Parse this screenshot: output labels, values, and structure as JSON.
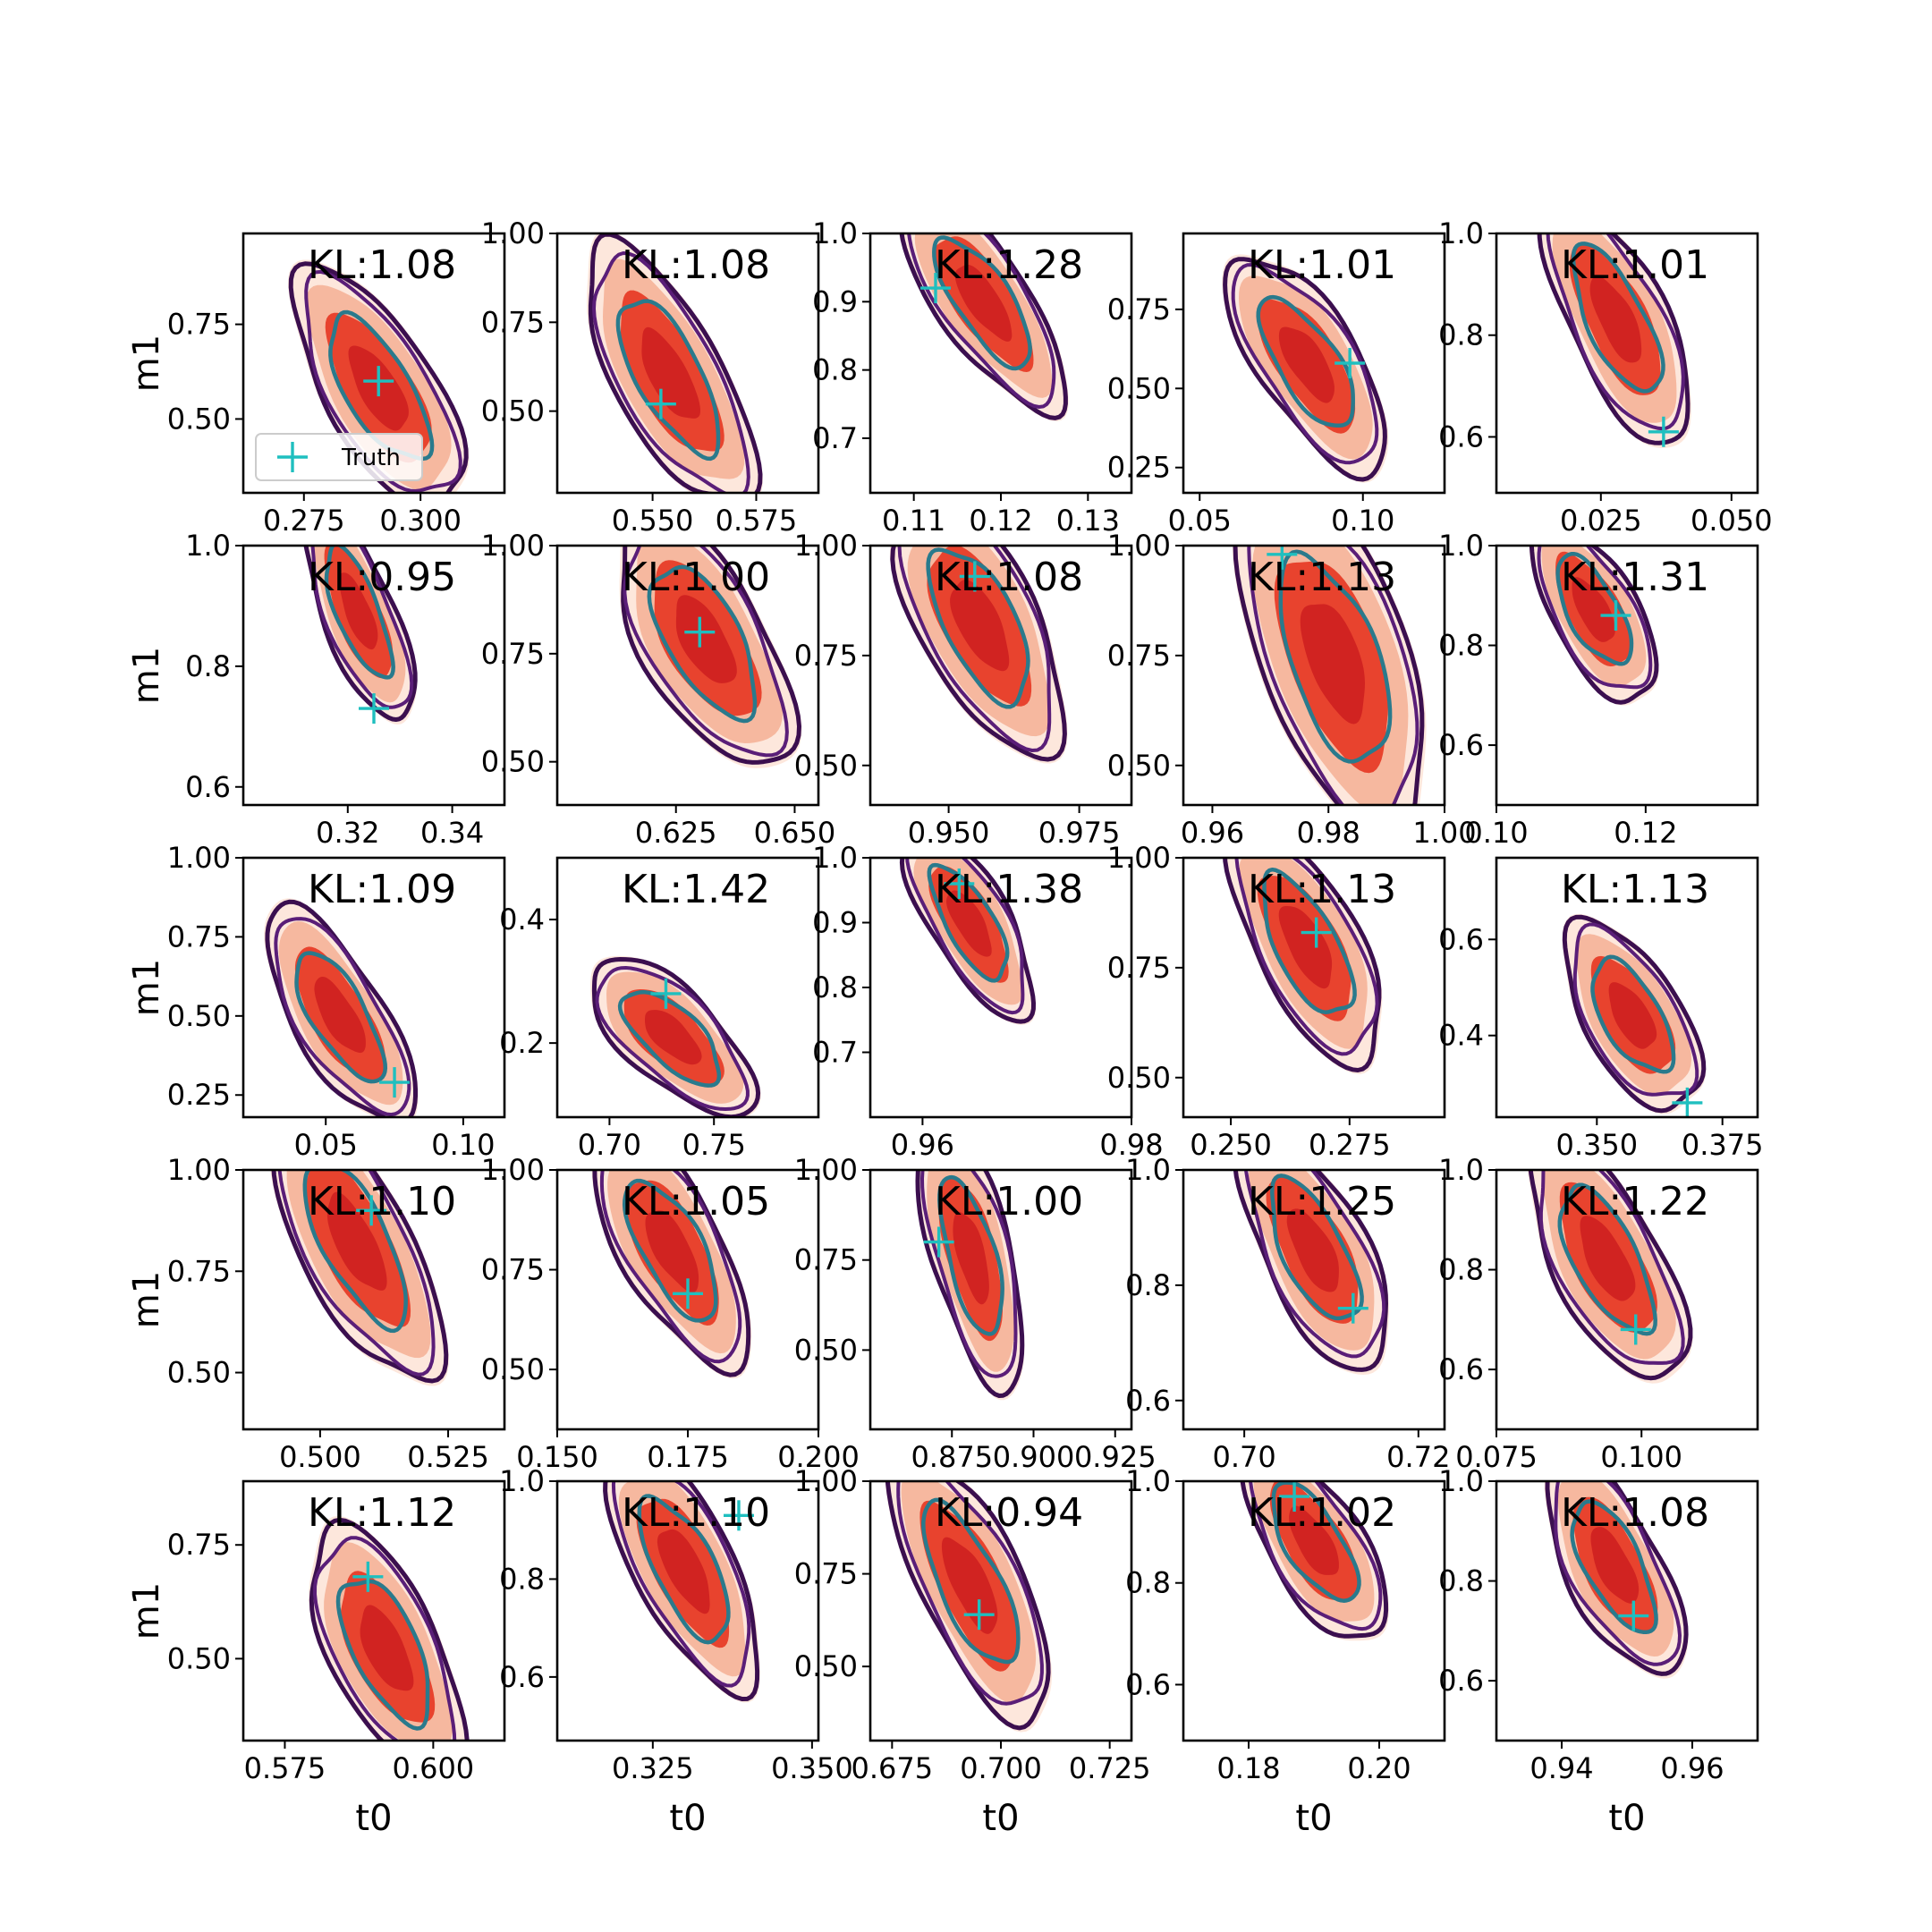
{
  "figure": {
    "background": "#ffffff"
  },
  "style": {
    "fill_colors": [
      "#fde3d6",
      "#f6b59b",
      "#e8432e",
      "#c9181e"
    ],
    "outer_contour_color": "#3b0f4f",
    "mid_contour_color": "#5a1e78",
    "inner_contour_color": "#2a7a8c",
    "truth_marker_color": "#1fbfbf"
  },
  "legend": {
    "label": "Truth",
    "panel": 0
  },
  "chart_data": [
    {
      "type": "contour",
      "row": 0,
      "col": 0,
      "kl": "KL:1.08",
      "xlim": [
        0.262,
        0.318
      ],
      "ylim": [
        0.305,
        0.99
      ],
      "xticks": [
        0.275,
        0.3
      ],
      "xtick_labels": [
        "0.275",
        "0.300"
      ],
      "yticks": [
        0.5,
        0.75
      ],
      "ytick_labels": [
        "0.50",
        "0.75"
      ],
      "center": [
        0.291,
        0.58
      ],
      "spread": [
        0.0074,
        0.13
      ],
      "rho": -0.68,
      "truth": [
        0.291,
        0.6
      ],
      "xlabel": "",
      "ylabel": "m1"
    },
    {
      "type": "contour",
      "row": 0,
      "col": 1,
      "kl": "KL:1.08",
      "xlim": [
        0.527,
        0.59
      ],
      "ylim": [
        0.27,
        1.0
      ],
      "xticks": [
        0.55,
        0.575
      ],
      "xtick_labels": [
        "0.550",
        "0.575"
      ],
      "yticks": [
        0.5,
        0.75,
        1.0
      ],
      "ytick_labels": [
        "0.50",
        "0.75",
        "1.00"
      ],
      "center": [
        0.554,
        0.6
      ],
      "spread": [
        0.0083,
        0.15
      ],
      "rho": -0.7,
      "truth": [
        0.552,
        0.52
      ],
      "xlabel": "",
      "ylabel": ""
    },
    {
      "type": "contour",
      "row": 0,
      "col": 2,
      "kl": "KL:1.28",
      "xlim": [
        0.105,
        0.135
      ],
      "ylim": [
        0.62,
        1.0
      ],
      "xticks": [
        0.11,
        0.12,
        0.13
      ],
      "xtick_labels": [
        "0.11",
        "0.12",
        "0.13"
      ],
      "yticks": [
        0.7,
        0.8,
        0.9,
        1.0
      ],
      "ytick_labels": [
        "0.7",
        "0.8",
        "0.9",
        "1.0"
      ],
      "center": [
        0.118,
        0.9
      ],
      "spread": [
        0.0038,
        0.065
      ],
      "rho": -0.75,
      "truth": [
        0.1125,
        0.92
      ],
      "xlabel": "",
      "ylabel": ""
    },
    {
      "type": "contour",
      "row": 0,
      "col": 3,
      "kl": "KL:1.01",
      "xlim": [
        0.045,
        0.125
      ],
      "ylim": [
        0.17,
        0.99
      ],
      "xticks": [
        0.05,
        0.1
      ],
      "xtick_labels": [
        "0.05",
        "0.10"
      ],
      "yticks": [
        0.25,
        0.5,
        0.75
      ],
      "ytick_labels": [
        "0.25",
        "0.50",
        "0.75"
      ],
      "center": [
        0.083,
        0.58
      ],
      "spread": [
        0.01,
        0.14
      ],
      "rho": -0.7,
      "truth": [
        0.096,
        0.58
      ],
      "xlabel": "",
      "ylabel": ""
    },
    {
      "type": "contour",
      "row": 0,
      "col": 4,
      "kl": "KL:1.01",
      "xlim": [
        0.005,
        0.055
      ],
      "ylim": [
        0.49,
        1.0
      ],
      "xticks": [
        0.025,
        0.05
      ],
      "xtick_labels": [
        "0.025",
        "0.050"
      ],
      "yticks": [
        0.6,
        0.8,
        1.0
      ],
      "ytick_labels": [
        "0.6",
        "0.8",
        "1.0"
      ],
      "center": [
        0.028,
        0.83
      ],
      "spread": [
        0.0058,
        0.1
      ],
      "rho": -0.7,
      "truth": [
        0.037,
        0.61
      ],
      "xlabel": "",
      "ylabel": ""
    },
    {
      "type": "contour",
      "row": 1,
      "col": 0,
      "kl": "KL:0.95",
      "xlim": [
        0.3,
        0.35
      ],
      "ylim": [
        0.57,
        1.0
      ],
      "xticks": [
        0.32,
        0.34
      ],
      "xtick_labels": [
        "0.32",
        "0.34"
      ],
      "yticks": [
        0.6,
        0.8,
        1.0
      ],
      "ytick_labels": [
        "0.6",
        "0.8",
        "1.0"
      ],
      "center": [
        0.322,
        0.89
      ],
      "spread": [
        0.0043,
        0.075
      ],
      "rho": -0.72,
      "truth": [
        0.325,
        0.73
      ],
      "xlabel": "",
      "ylabel": "m1"
    },
    {
      "type": "contour",
      "row": 1,
      "col": 1,
      "kl": "KL:1.00",
      "xlim": [
        0.6,
        0.655
      ],
      "ylim": [
        0.4,
        1.0
      ],
      "xticks": [
        0.625,
        0.65
      ],
      "xtick_labels": [
        "0.625",
        "0.650"
      ],
      "yticks": [
        0.5,
        0.75,
        1.0
      ],
      "ytick_labels": [
        "0.50",
        "0.75",
        "1.00"
      ],
      "center": [
        0.631,
        0.78
      ],
      "spread": [
        0.0075,
        0.12
      ],
      "rho": -0.62,
      "truth": [
        0.63,
        0.8
      ],
      "xlabel": "",
      "ylabel": ""
    },
    {
      "type": "contour",
      "row": 1,
      "col": 2,
      "kl": "KL:1.08",
      "xlim": [
        0.935,
        0.985
      ],
      "ylim": [
        0.41,
        1.0
      ],
      "xticks": [
        0.95,
        0.975
      ],
      "xtick_labels": [
        "0.950",
        "0.975"
      ],
      "yticks": [
        0.5,
        0.75,
        1.0
      ],
      "ytick_labels": [
        "0.50",
        "0.75",
        "1.00"
      ],
      "center": [
        0.956,
        0.82
      ],
      "spread": [
        0.0065,
        0.12
      ],
      "rho": -0.62,
      "truth": [
        0.955,
        0.93
      ],
      "xlabel": "",
      "ylabel": ""
    },
    {
      "type": "contour",
      "row": 1,
      "col": 3,
      "kl": "KL:1.13",
      "xlim": [
        0.955,
        1.0
      ],
      "ylim": [
        0.41,
        1.0
      ],
      "xticks": [
        0.96,
        0.98,
        1.0
      ],
      "xtick_labels": [
        "0.96",
        "0.98",
        "1.00"
      ],
      "yticks": [
        0.5,
        0.75,
        1.0
      ],
      "ytick_labels": [
        "0.50",
        "0.75",
        "1.00"
      ],
      "center": [
        0.981,
        0.74
      ],
      "spread": [
        0.0065,
        0.16
      ],
      "rho": -0.55,
      "truth": [
        0.972,
        0.98
      ],
      "xlabel": "",
      "ylabel": ""
    },
    {
      "type": "contour",
      "row": 1,
      "col": 4,
      "kl": "KL:1.31",
      "xlim": [
        0.1,
        0.135
      ],
      "ylim": [
        0.48,
        1.0
      ],
      "xticks": [
        0.1,
        0.12
      ],
      "xtick_labels": [
        "0.10",
        "0.12"
      ],
      "yticks": [
        0.6,
        0.8,
        1.0
      ],
      "ytick_labels": [
        "0.6",
        "0.8",
        "1.0"
      ],
      "center": [
        0.113,
        0.87
      ],
      "spread": [
        0.0034,
        0.075
      ],
      "rho": -0.65,
      "truth": [
        0.116,
        0.86
      ],
      "xlabel": "",
      "ylabel": ""
    },
    {
      "type": "contour",
      "row": 2,
      "col": 0,
      "kl": "KL:1.09",
      "xlim": [
        0.02,
        0.115
      ],
      "ylim": [
        0.18,
        1.0
      ],
      "xticks": [
        0.05,
        0.1
      ],
      "xtick_labels": [
        "0.05",
        "0.10"
      ],
      "yticks": [
        0.25,
        0.5,
        0.75,
        1.0
      ],
      "ytick_labels": [
        "0.25",
        "0.50",
        "0.75",
        "1.00"
      ],
      "center": [
        0.055,
        0.5
      ],
      "spread": [
        0.011,
        0.14
      ],
      "rho": -0.72,
      "truth": [
        0.075,
        0.29
      ],
      "xlabel": "",
      "ylabel": "m1"
    },
    {
      "type": "contour",
      "row": 2,
      "col": 1,
      "kl": "KL:1.42",
      "xlim": [
        0.675,
        0.8
      ],
      "ylim": [
        0.08,
        0.5
      ],
      "xticks": [
        0.7,
        0.75
      ],
      "xtick_labels": [
        "0.70",
        "0.75"
      ],
      "yticks": [
        0.2,
        0.4
      ],
      "ytick_labels": [
        "0.2",
        "0.4"
      ],
      "center": [
        0.73,
        0.21
      ],
      "spread": [
        0.016,
        0.052
      ],
      "rho": -0.68,
      "truth": [
        0.727,
        0.28
      ],
      "xlabel": "",
      "ylabel": ""
    },
    {
      "type": "contour",
      "row": 2,
      "col": 2,
      "kl": "KL:1.38",
      "xlim": [
        0.955,
        0.98
      ],
      "ylim": [
        0.6,
        1.0
      ],
      "xticks": [
        0.96,
        0.98
      ],
      "xtick_labels": [
        "0.96",
        "0.98"
      ],
      "yticks": [
        0.7,
        0.8,
        0.9,
        1.0
      ],
      "ytick_labels": [
        "0.7",
        "0.8",
        "0.9",
        "1.0"
      ],
      "center": [
        0.9645,
        0.9
      ],
      "spread": [
        0.0025,
        0.06
      ],
      "rho": -0.72,
      "truth": [
        0.9635,
        0.96
      ],
      "xlabel": "",
      "ylabel": ""
    },
    {
      "type": "contour",
      "row": 2,
      "col": 3,
      "kl": "KL:1.13",
      "xlim": [
        0.24,
        0.295
      ],
      "ylim": [
        0.41,
        1.0
      ],
      "xticks": [
        0.25,
        0.275
      ],
      "xtick_labels": [
        "0.250",
        "0.275"
      ],
      "yticks": [
        0.5,
        0.75,
        1.0
      ],
      "ytick_labels": [
        "0.50",
        "0.75",
        "1.00"
      ],
      "center": [
        0.266,
        0.8
      ],
      "spread": [
        0.0065,
        0.11
      ],
      "rho": -0.66,
      "truth": [
        0.268,
        0.83
      ],
      "xlabel": "",
      "ylabel": ""
    },
    {
      "type": "contour",
      "row": 2,
      "col": 4,
      "kl": "KL:1.13",
      "xlim": [
        0.33,
        0.382
      ],
      "ylim": [
        0.23,
        0.77
      ],
      "xticks": [
        0.35,
        0.375
      ],
      "xtick_labels": [
        "0.350",
        "0.375"
      ],
      "yticks": [
        0.4,
        0.6
      ],
      "ytick_labels": [
        "0.4",
        "0.6"
      ],
      "center": [
        0.357,
        0.44
      ],
      "spread": [
        0.0055,
        0.08
      ],
      "rho": -0.6,
      "truth": [
        0.368,
        0.26
      ],
      "xlabel": "",
      "ylabel": ""
    },
    {
      "type": "contour",
      "row": 3,
      "col": 0,
      "kl": "KL:1.10",
      "xlim": [
        0.485,
        0.536
      ],
      "ylim": [
        0.36,
        1.0
      ],
      "xticks": [
        0.5,
        0.525
      ],
      "xtick_labels": [
        "0.500",
        "0.525"
      ],
      "yticks": [
        0.5,
        0.75,
        1.0
      ],
      "ytick_labels": [
        "0.50",
        "0.75",
        "1.00"
      ],
      "center": [
        0.507,
        0.82
      ],
      "spread": [
        0.0068,
        0.14
      ],
      "rho": -0.7,
      "truth": [
        0.51,
        0.9
      ],
      "xlabel": "",
      "ylabel": "m1"
    },
    {
      "type": "contour",
      "row": 3,
      "col": 1,
      "kl": "KL:1.05",
      "xlim": [
        0.15,
        0.2
      ],
      "ylim": [
        0.35,
        1.0
      ],
      "xticks": [
        0.15,
        0.175,
        0.2
      ],
      "xtick_labels": [
        "0.150",
        "0.175",
        "0.200"
      ],
      "yticks": [
        0.5,
        0.75,
        1.0
      ],
      "ytick_labels": [
        "0.50",
        "0.75",
        "1.00"
      ],
      "center": [
        0.172,
        0.8
      ],
      "spread": [
        0.006,
        0.12
      ],
      "rho": -0.68,
      "truth": [
        0.175,
        0.69
      ],
      "xlabel": "",
      "ylabel": ""
    },
    {
      "type": "contour",
      "row": 3,
      "col": 2,
      "kl": "KL:1.00",
      "xlim": [
        0.85,
        0.93
      ],
      "ylim": [
        0.28,
        1.0
      ],
      "xticks": [
        0.875,
        0.9,
        0.925
      ],
      "xtick_labels": [
        "0.875",
        "0.900",
        "0.925"
      ],
      "yticks": [
        0.5,
        0.75,
        1.0
      ],
      "ytick_labels": [
        "0.50",
        "0.75",
        "1.00"
      ],
      "center": [
        0.881,
        0.76
      ],
      "spread": [
        0.0065,
        0.15
      ],
      "rho": -0.62,
      "truth": [
        0.871,
        0.8
      ],
      "xlabel": "",
      "ylabel": ""
    },
    {
      "type": "contour",
      "row": 3,
      "col": 3,
      "kl": "KL:1.25",
      "xlim": [
        0.693,
        0.723
      ],
      "ylim": [
        0.55,
        1.0
      ],
      "xticks": [
        0.7,
        0.72
      ],
      "xtick_labels": [
        "0.70",
        "0.72"
      ],
      "yticks": [
        0.6,
        0.8,
        1.0
      ],
      "ytick_labels": [
        "0.6",
        "0.8",
        "1.0"
      ],
      "center": [
        0.708,
        0.86
      ],
      "spread": [
        0.0035,
        0.085
      ],
      "rho": -0.66,
      "truth": [
        0.7125,
        0.76
      ],
      "xlabel": "",
      "ylabel": ""
    },
    {
      "type": "contour",
      "row": 3,
      "col": 4,
      "kl": "KL:1.22",
      "xlim": [
        0.075,
        0.12
      ],
      "ylim": [
        0.48,
        1.0
      ],
      "xticks": [
        0.075,
        0.1
      ],
      "xtick_labels": [
        "0.075",
        "0.100"
      ],
      "yticks": [
        0.6,
        0.8,
        1.0
      ],
      "ytick_labels": [
        "0.6",
        "0.8",
        "1.0"
      ],
      "center": [
        0.094,
        0.82
      ],
      "spread": [
        0.0055,
        0.1
      ],
      "rho": -0.66,
      "truth": [
        0.099,
        0.68
      ],
      "xlabel": "",
      "ylabel": ""
    },
    {
      "type": "contour",
      "row": 4,
      "col": 0,
      "kl": "KL:1.12",
      "xlim": [
        0.568,
        0.612
      ],
      "ylim": [
        0.32,
        0.89
      ],
      "xticks": [
        0.575,
        0.6
      ],
      "xtick_labels": [
        "0.575",
        "0.600"
      ],
      "yticks": [
        0.5,
        0.75
      ],
      "ytick_labels": [
        "0.50",
        "0.75"
      ],
      "center": [
        0.592,
        0.52
      ],
      "spread": [
        0.0052,
        0.11
      ],
      "rho": -0.62,
      "truth": [
        0.589,
        0.68
      ],
      "xlabel": "t0",
      "ylabel": "m1"
    },
    {
      "type": "contour",
      "row": 4,
      "col": 1,
      "kl": "KL:1.10",
      "xlim": [
        0.31,
        0.351
      ],
      "ylim": [
        0.47,
        1.0
      ],
      "xticks": [
        0.325,
        0.35
      ],
      "xtick_labels": [
        "0.325",
        "0.350"
      ],
      "yticks": [
        0.6,
        0.8,
        1.0
      ],
      "ytick_labels": [
        "0.6",
        "0.8",
        "1.0"
      ],
      "center": [
        0.33,
        0.82
      ],
      "spread": [
        0.0048,
        0.1
      ],
      "rho": -0.68,
      "truth": [
        0.3385,
        0.93
      ],
      "xlabel": "t0",
      "ylabel": ""
    },
    {
      "type": "contour",
      "row": 4,
      "col": 2,
      "kl": "KL:0.94",
      "xlim": [
        0.67,
        0.73
      ],
      "ylim": [
        0.3,
        1.0
      ],
      "xticks": [
        0.675,
        0.7,
        0.725
      ],
      "xtick_labels": [
        "0.675",
        "0.700",
        "0.725"
      ],
      "yticks": [
        0.5,
        0.75,
        1.0
      ],
      "ytick_labels": [
        "0.50",
        "0.75",
        "1.00"
      ],
      "center": [
        0.693,
        0.72
      ],
      "spread": [
        0.0075,
        0.15
      ],
      "rho": -0.72,
      "truth": [
        0.695,
        0.64
      ],
      "xlabel": "t0",
      "ylabel": ""
    },
    {
      "type": "contour",
      "row": 4,
      "col": 3,
      "kl": "KL:1.02",
      "xlim": [
        0.17,
        0.21
      ],
      "ylim": [
        0.49,
        1.0
      ],
      "xticks": [
        0.18,
        0.2
      ],
      "xtick_labels": [
        "0.18",
        "0.20"
      ],
      "yticks": [
        0.6,
        0.8,
        1.0
      ],
      "ytick_labels": [
        "0.6",
        "0.8",
        "1.0"
      ],
      "center": [
        0.19,
        0.88
      ],
      "spread": [
        0.0045,
        0.08
      ],
      "rho": -0.68,
      "truth": [
        0.187,
        0.97
      ],
      "xlabel": "t0",
      "ylabel": ""
    },
    {
      "type": "contour",
      "row": 4,
      "col": 4,
      "kl": "KL:1.08",
      "xlim": [
        0.93,
        0.97
      ],
      "ylim": [
        0.48,
        1.0
      ],
      "xticks": [
        0.94,
        0.96
      ],
      "xtick_labels": [
        "0.94",
        "0.96"
      ],
      "yticks": [
        0.6,
        0.8,
        1.0
      ],
      "ytick_labels": [
        "0.6",
        "0.8",
        "1.0"
      ],
      "center": [
        0.948,
        0.83
      ],
      "spread": [
        0.0043,
        0.09
      ],
      "rho": -0.66,
      "truth": [
        0.951,
        0.73
      ],
      "xlabel": "t0",
      "ylabel": ""
    }
  ]
}
